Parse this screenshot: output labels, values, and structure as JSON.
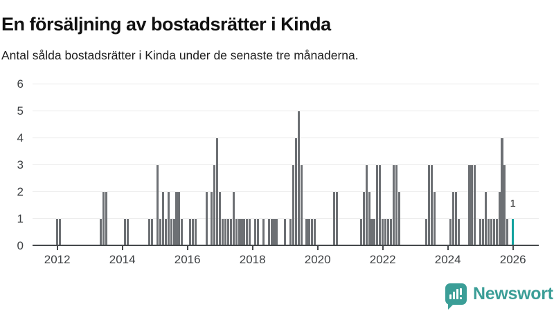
{
  "title": "En försäljning av bostadsrätter i Kinda",
  "subtitle": "Antal sålda bostadsrätter i Kinda under de senaste tre månaderna.",
  "branding": {
    "logo_text": "Newsworthy"
  },
  "colors": {
    "bar": "#6d7074",
    "highlight": "#12a29e",
    "axis": "#45484b",
    "grid": "#e8e8e8",
    "tick_label": "#3d4043",
    "brand": "#3b9e97"
  },
  "chart_data": {
    "type": "bar",
    "title": "En försäljning av bostadsrätter i Kinda",
    "subtitle": "Antal sålda bostadsrätter i Kinda under de senaste tre månaderna.",
    "x_start": "2012-01",
    "x_end": "2026-01",
    "grid": true,
    "ylim": [
      0,
      6
    ],
    "y_ticks": [
      0,
      1,
      2,
      3,
      4,
      5,
      6
    ],
    "x_tick_years": [
      2012,
      2014,
      2016,
      2018,
      2020,
      2022,
      2024,
      2026
    ],
    "monthly_values_by_year": {
      "2012": [
        1,
        1,
        0,
        0,
        0,
        0,
        0,
        0,
        0,
        0,
        0,
        0
      ],
      "2013": [
        0,
        0,
        0,
        0,
        1,
        2,
        2,
        0,
        0,
        0,
        0,
        0
      ],
      "2014": [
        0,
        1,
        1,
        0,
        0,
        0,
        0,
        0,
        0,
        0,
        1,
        1
      ],
      "2015": [
        0,
        3,
        1,
        2,
        1,
        2,
        1,
        1,
        2,
        2,
        1,
        0
      ],
      "2016": [
        0,
        1,
        1,
        1,
        0,
        0,
        0,
        2,
        0,
        2,
        3,
        4
      ],
      "2017": [
        2,
        1,
        1,
        1,
        1,
        2,
        1,
        1,
        1,
        1,
        1,
        1
      ],
      "2018": [
        0,
        1,
        1,
        0,
        1,
        0,
        1,
        1,
        1,
        1,
        0,
        0
      ],
      "2019": [
        1,
        0,
        1,
        3,
        4,
        5,
        3,
        0,
        1,
        1,
        1,
        1
      ],
      "2020": [
        0,
        0,
        0,
        0,
        0,
        0,
        2,
        2,
        0,
        0,
        0,
        0
      ],
      "2021": [
        0,
        0,
        0,
        0,
        1,
        2,
        3,
        2,
        1,
        1,
        3,
        3
      ],
      "2022": [
        1,
        1,
        1,
        1,
        3,
        3,
        2,
        0,
        0,
        0,
        0,
        0
      ],
      "2023": [
        0,
        0,
        0,
        0,
        1,
        3,
        3,
        2,
        0,
        0,
        0,
        0
      ],
      "2024": [
        0,
        1,
        2,
        2,
        1,
        0,
        0,
        0,
        3,
        3,
        3,
        0
      ],
      "2025": [
        1,
        1,
        2,
        1,
        1,
        1,
        1,
        2,
        4,
        3,
        1,
        0
      ],
      "2026": [
        1
      ]
    },
    "highlight_last_bar": true,
    "last_value_label": "1"
  }
}
